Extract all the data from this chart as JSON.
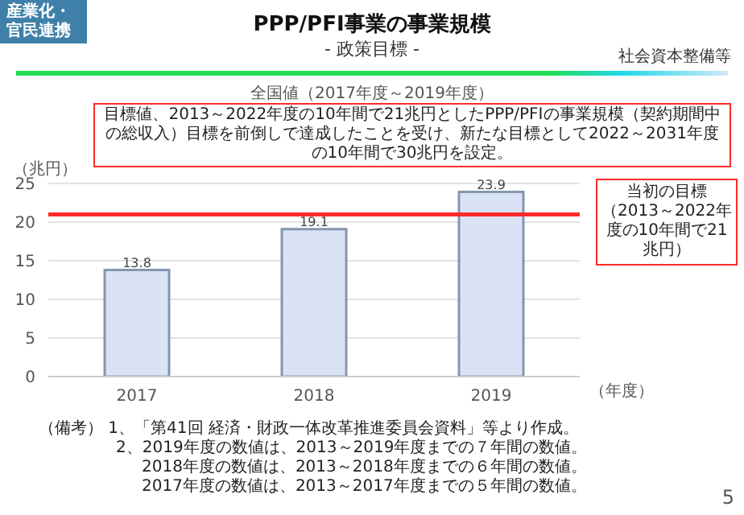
{
  "chart_data": {
    "type": "bar",
    "title": "PPP/PFI事業の事業規模",
    "subtitle": "- 政策目標 -",
    "xlabel": "（年度）",
    "ylabel": "（兆円）",
    "annotations": [
      "産業化・官民連携",
      "社会資本整備等",
      "全国値（2017年度～2019年度）",
      "目標値、2013～2022年度の10年間で21兆円としたPPP/PFIの事業規模（契約期間中の総収入）目標を前倒しで達成したことを受け、新たな目標として2022～2031年度の10年間で30兆円を設定。",
      "（備考） 1、「第41回 経済・財政一体改革推進委員会資料」等より作成。",
      "2、2019年度の数値は、2013～2019年度までの７年間の数値。",
      "2018年度の数値は、2013～2018年度までの６年間の数値。",
      "2017年度の数値は、2013～2017年度までの５年間の数値。",
      "5"
    ],
    "categories": [
      "2017",
      "2018",
      "2019"
    ],
    "values": [
      13.8,
      19.1,
      23.9
    ],
    "color": "#dae3f3",
    "ylim": [
      0,
      25
    ],
    "yticks": [
      0,
      5,
      10,
      15,
      20,
      25
    ],
    "grid": "y",
    "data_labels": true,
    "legend": false,
    "ref_lines": [
      {
        "axis": "y",
        "value": 21,
        "label": "当初の目標（2013～2022年度の10年間で21兆円）",
        "color": "#ff2a2a"
      }
    ]
  }
}
